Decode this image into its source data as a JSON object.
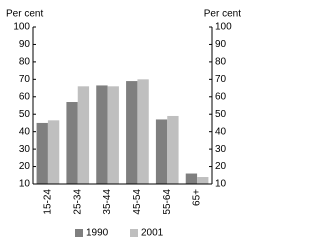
{
  "chart_data": {
    "type": "bar",
    "ylabel": "Per cent",
    "y2label": "Per cent",
    "categories": [
      "15-24",
      "25-34",
      "35-44",
      "45-54",
      "55-64",
      "65+"
    ],
    "series": [
      {
        "name": "1990",
        "color": "#7f7f7f",
        "values": [
          45,
          57,
          66.5,
          69,
          47,
          16
        ]
      },
      {
        "name": "2001",
        "color": "#bfbfbf",
        "values": [
          46.5,
          66,
          66,
          70,
          49,
          14
        ]
      }
    ],
    "ylim": [
      10,
      100
    ],
    "yticks": [
      10,
      20,
      30,
      40,
      50,
      60,
      70,
      80,
      90,
      100
    ],
    "grid": false,
    "legend": "bottom"
  }
}
